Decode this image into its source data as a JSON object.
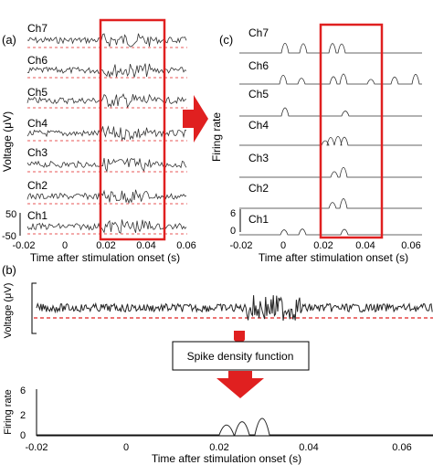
{
  "panel_labels": {
    "a": "(a)",
    "b": "(b)",
    "c": "(c)"
  },
  "panel_a": {
    "ylabel": "Voltage (μV)",
    "xlabel": "Time after stimulation onset (s)",
    "channels": [
      "Ch7",
      "Ch6",
      "Ch5",
      "Ch4",
      "Ch3",
      "Ch2",
      "Ch1"
    ],
    "scale_top": "50",
    "scale_bottom": "-50",
    "x_ticks": [
      "-0.02",
      "0",
      "0.02",
      "0.04",
      "0.06"
    ]
  },
  "panel_c": {
    "ylabel": "Firing rate",
    "xlabel": "Time after stimulation onset (s)",
    "channels": [
      "Ch7",
      "Ch6",
      "Ch5",
      "Ch4",
      "Ch3",
      "Ch2",
      "Ch1"
    ],
    "scale_top": "6",
    "scale_bottom": "0",
    "x_ticks": [
      "-0.02",
      "0",
      "0.02",
      "0.04",
      "0.06"
    ]
  },
  "panel_b": {
    "voltage_ylabel": "Voltage (μV)",
    "spike_box_label": "Spike density function",
    "rate_ylabel": "Firing rate",
    "rate_y_ticks": [
      "6",
      "2",
      "0"
    ],
    "xlabel": "Time after stimulation onset (s)",
    "x_ticks": [
      "-0.02",
      "0",
      "0.02",
      "0.04",
      "0.06"
    ]
  },
  "colors": {
    "highlight": "#e02020",
    "threshold": "#e02020",
    "trace": "#222222",
    "axis": "#000000"
  }
}
